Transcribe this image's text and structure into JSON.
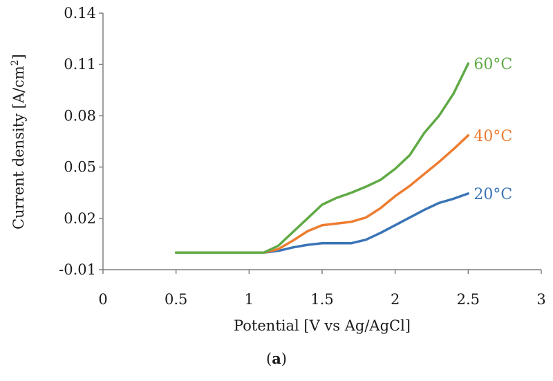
{
  "chart_data": {
    "type": "line",
    "xlabel": "Potential [V vs Ag/AgCl]",
    "ylabel": "Current density [A/cm",
    "ylabel_sup": "2",
    "ylabel_end": "]",
    "xlim": [
      0,
      3
    ],
    "ylim": [
      -0.01,
      0.14
    ],
    "xticks": [
      "0",
      "0.5",
      "1",
      "1.5",
      "2",
      "2.5",
      "3"
    ],
    "yticks": [
      "-0.01",
      "0.02",
      "0.05",
      "0.08",
      "0.11",
      "0.14"
    ],
    "xtick_values": [
      0,
      0.5,
      1,
      1.5,
      2,
      2.5,
      3
    ],
    "ytick_values": [
      -0.01,
      0.02,
      0.05,
      0.08,
      0.11,
      0.14
    ],
    "grid": false,
    "series": [
      {
        "name": "20°C",
        "color": "#3a74b6",
        "x": [
          0.5,
          0.8,
          1.1,
          1.2,
          1.3,
          1.4,
          1.5,
          1.6,
          1.7,
          1.8,
          1.9,
          2.0,
          2.1,
          2.2,
          2.3,
          2.4,
          2.5
        ],
        "y": [
          0.0,
          0.0,
          0.0,
          0.001,
          0.003,
          0.0045,
          0.0055,
          0.0055,
          0.0055,
          0.0075,
          0.0115,
          0.016,
          0.0205,
          0.025,
          0.029,
          0.0315,
          0.0345
        ]
      },
      {
        "name": "40°C",
        "color": "#ed7d31",
        "x": [
          0.5,
          0.8,
          1.1,
          1.2,
          1.3,
          1.4,
          1.5,
          1.6,
          1.7,
          1.8,
          1.9,
          2.0,
          2.1,
          2.2,
          2.3,
          2.4,
          2.5
        ],
        "y": [
          0.0,
          0.0,
          0.0,
          0.002,
          0.007,
          0.0125,
          0.016,
          0.017,
          0.018,
          0.0205,
          0.026,
          0.033,
          0.039,
          0.046,
          0.053,
          0.0605,
          0.0685
        ]
      },
      {
        "name": "60°C",
        "color": "#5faa46",
        "x": [
          0.5,
          0.8,
          1.1,
          1.2,
          1.3,
          1.4,
          1.5,
          1.6,
          1.7,
          1.8,
          1.9,
          2.0,
          2.1,
          2.2,
          2.3,
          2.4,
          2.5
        ],
        "y": [
          0.0,
          0.0,
          0.0,
          0.004,
          0.012,
          0.02,
          0.028,
          0.032,
          0.035,
          0.0385,
          0.0425,
          0.049,
          0.057,
          0.07,
          0.08,
          0.093,
          0.1105
        ]
      }
    ]
  },
  "caption": {
    "open": "(",
    "letter": "a",
    "close": ")"
  }
}
